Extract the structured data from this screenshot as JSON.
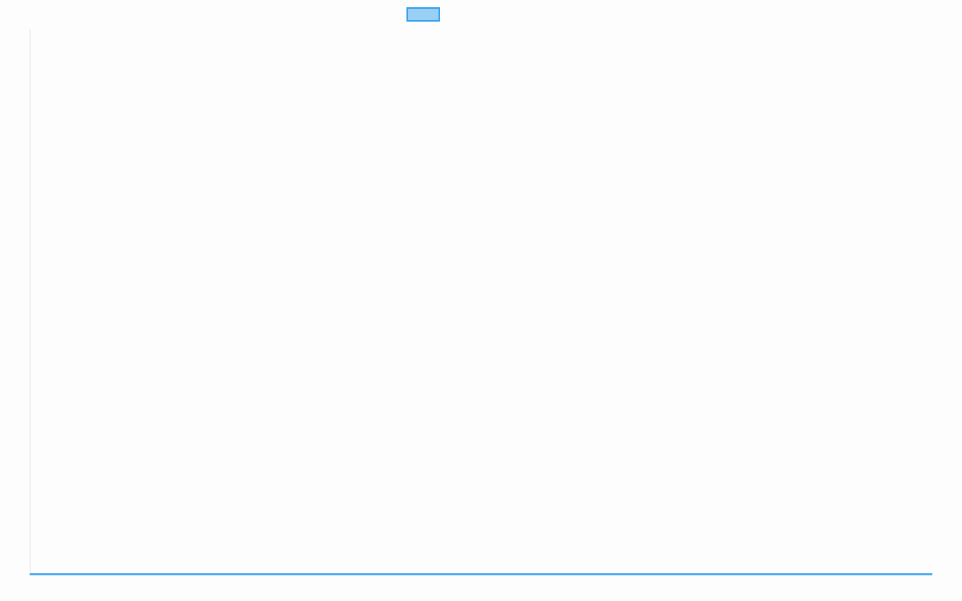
{
  "chart_data": {
    "type": "line",
    "title": "",
    "xlabel": "",
    "ylabel": "",
    "categories": [],
    "series": [
      {
        "values": [],
        "color": "#36a2eb",
        "fill": "#9ad0f5"
      }
    ],
    "grid": false,
    "legend": "top"
  }
}
